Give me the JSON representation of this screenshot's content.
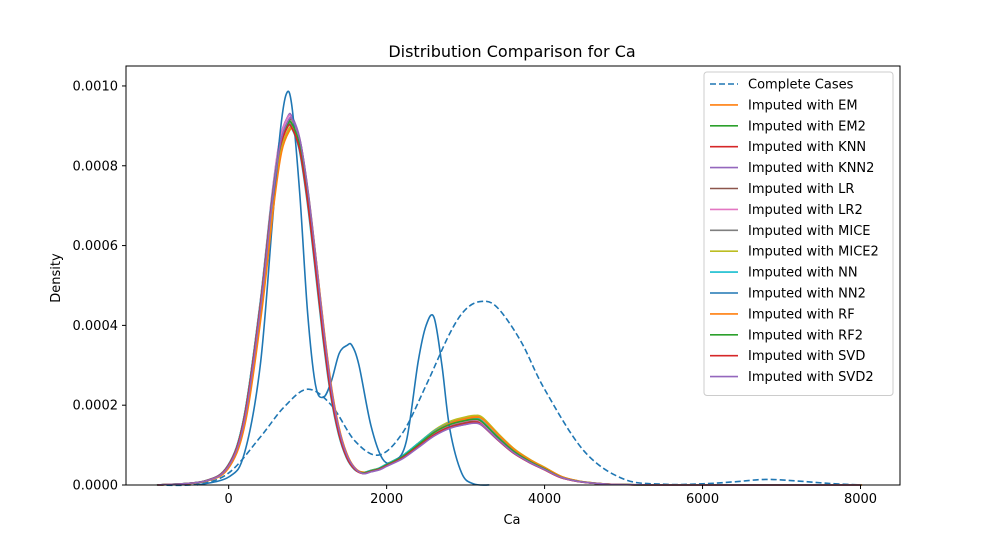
{
  "chart_data": {
    "type": "line",
    "title": "Distribution Comparison for Ca",
    "xlabel": "Ca",
    "ylabel": "Density",
    "xlim": [
      -1300,
      8500
    ],
    "ylim": [
      0,
      0.00105
    ],
    "xticks": [
      0,
      2000,
      4000,
      6000,
      8000
    ],
    "xtick_labels": [
      "0",
      "2000",
      "4000",
      "6000",
      "8000"
    ],
    "yticks": [
      0,
      0.0002,
      0.0004,
      0.0006,
      0.0008,
      0.001
    ],
    "ytick_labels": [
      "0.0000",
      "0.0002",
      "0.0004",
      "0.0006",
      "0.0008",
      "0.0010"
    ],
    "grid": false,
    "legend_position": "top-right",
    "series": [
      {
        "name": "Complete Cases",
        "color": "#1f77b4",
        "dashed": true,
        "x": [
          -900,
          -400,
          0,
          400,
          700,
          1000,
          1300,
          1600,
          1900,
          2200,
          2500,
          2800,
          3000,
          3200,
          3400,
          3700,
          4000,
          4500,
          5000,
          5500,
          6000,
          6400,
          6800,
          7200,
          7600,
          8000
        ],
        "y": [
          0,
          2e-06,
          3e-05,
          0.00012,
          0.000195,
          0.00024,
          0.0002,
          0.00011,
          7.5e-05,
          0.00013,
          0.00025,
          0.00038,
          0.00044,
          0.00046,
          0.000445,
          0.00036,
          0.00024,
          8.5e-05,
          1.5e-05,
          2e-06,
          3e-06,
          8e-06,
          1.4e-05,
          1e-05,
          4e-06,
          0
        ]
      },
      {
        "name": "Imputed with EM",
        "color": "#ff7f0e",
        "dashed": false
      },
      {
        "name": "Imputed with EM2",
        "color": "#2ca02c",
        "dashed": false
      },
      {
        "name": "Imputed with KNN",
        "color": "#d62728",
        "dashed": false
      },
      {
        "name": "Imputed with KNN2",
        "color": "#9467bd",
        "dashed": false
      },
      {
        "name": "Imputed with LR",
        "color": "#8c564b",
        "dashed": false
      },
      {
        "name": "Imputed with LR2",
        "color": "#e377c2",
        "dashed": false
      },
      {
        "name": "Imputed with MICE",
        "color": "#7f7f7f",
        "dashed": false
      },
      {
        "name": "Imputed with MICE2",
        "color": "#bcbd22",
        "dashed": false
      },
      {
        "name": "Imputed with NN",
        "color": "#17becf",
        "dashed": false
      },
      {
        "name": "Imputed with NN2",
        "color": "#1f77b4",
        "dashed": false,
        "x": [
          -400,
          0,
          200,
          400,
          550,
          650,
          730,
          800,
          900,
          1000,
          1100,
          1200,
          1300,
          1400,
          1500,
          1560,
          1650,
          1800,
          1950,
          2100,
          2250,
          2400,
          2500,
          2600,
          2700,
          2800,
          2950,
          3100,
          3300
        ],
        "y": [
          0,
          2e-05,
          8e-05,
          0.0003,
          0.00065,
          0.00088,
          0.00098,
          0.00095,
          0.00073,
          0.00043,
          0.00025,
          0.00022,
          0.00026,
          0.00033,
          0.00035,
          0.00035,
          0.0003,
          0.00015,
          6.5e-05,
          6e-05,
          0.00011,
          0.00031,
          0.0004,
          0.00042,
          0.0003,
          0.00014,
          3e-05,
          3e-06,
          0
        ]
      },
      {
        "name": "Imputed with RF",
        "color": "#ff7f0e",
        "dashed": false
      },
      {
        "name": "Imputed with RF2",
        "color": "#2ca02c",
        "dashed": false
      },
      {
        "name": "Imputed with SVD",
        "color": "#d62728",
        "dashed": false
      },
      {
        "name": "Imputed with SVD2",
        "color": "#9467bd",
        "dashed": false
      }
    ],
    "imputed_cluster_approx": {
      "x": [
        -900,
        -300,
        0,
        200,
        400,
        550,
        650,
        750,
        800,
        900,
        1000,
        1100,
        1200,
        1300,
        1400,
        1500,
        1600,
        1700,
        1800,
        1900,
        2000,
        2200,
        2400,
        2600,
        2800,
        3000,
        3100,
        3200,
        3400,
        3600,
        3800,
        4000,
        4200,
        4400,
        4600,
        4800,
        5000,
        5400,
        6000,
        7000,
        8000
      ],
      "y": [
        0,
        1e-05,
        5e-05,
        0.00017,
        0.00045,
        0.00072,
        0.00086,
        0.000915,
        0.000915,
        0.00086,
        0.00073,
        0.00056,
        0.00038,
        0.00023,
        0.00013,
        7e-05,
        4e-05,
        3e-05,
        3.5e-05,
        4e-05,
        5e-05,
        7e-05,
        0.0001,
        0.00013,
        0.00015,
        0.00016,
        0.000163,
        0.000158,
        0.00012,
        8.5e-05,
        6e-05,
        4e-05,
        2e-05,
        1e-05,
        5e-06,
        2e-06,
        1e-06,
        0,
        0,
        0,
        0
      ]
    }
  }
}
